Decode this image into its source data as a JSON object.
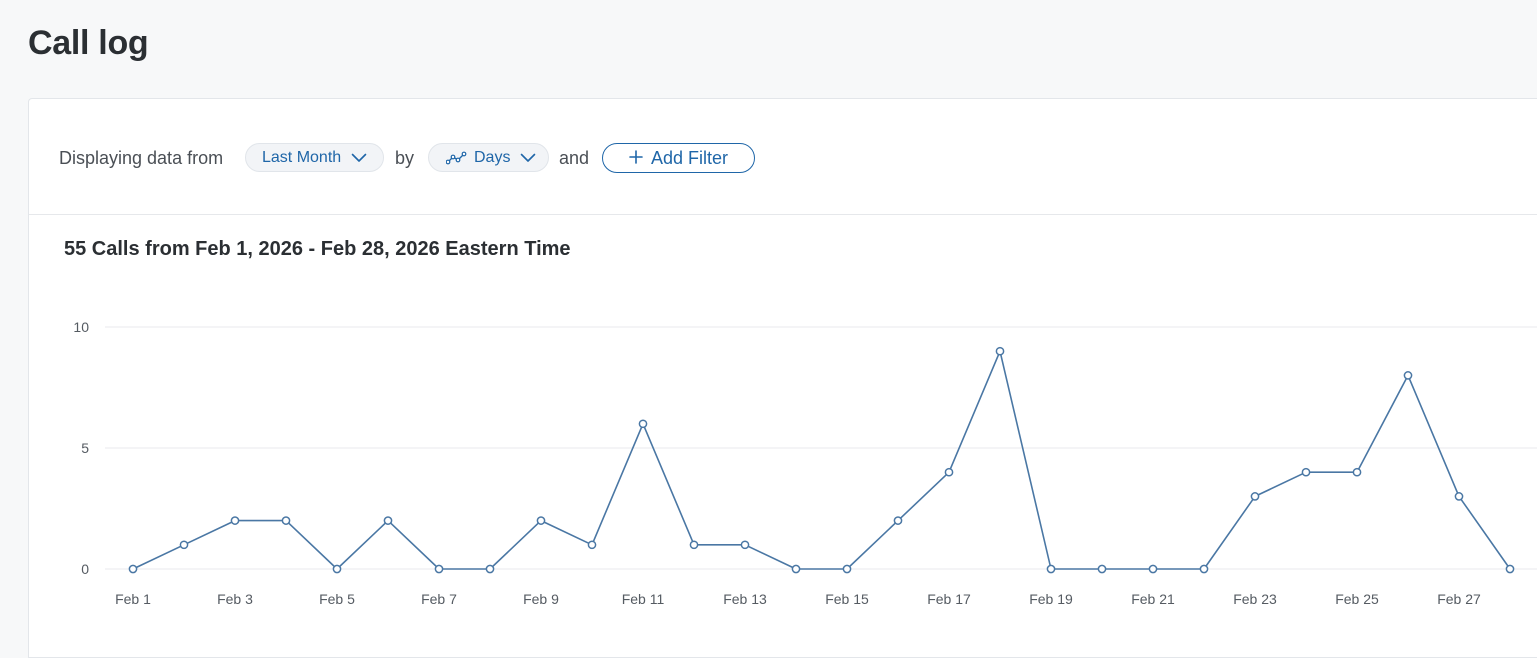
{
  "page": {
    "title": "Call log"
  },
  "filters": {
    "prefix": "Displaying data from",
    "range_label": "Last Month",
    "by": "by",
    "interval_label": "Days",
    "and": "and",
    "add_filter_label": "Add Filter"
  },
  "colors": {
    "accent": "#1f66a8",
    "line": "#4a77a4",
    "grid": "#e8eaed"
  },
  "icons": {
    "range_dropdown": "chevron-down-icon",
    "interval": "line-chart-icon",
    "interval_dropdown": "chevron-down-icon",
    "add": "plus-icon"
  },
  "chart_data": {
    "type": "line",
    "title": "55 Calls from Feb 1, 2026 - Feb 28, 2026 Eastern Time",
    "xlabel": "",
    "ylabel": "",
    "ylim": [
      0,
      10
    ],
    "yticks": [
      0,
      5,
      10
    ],
    "grid": true,
    "x": [
      "Feb 1",
      "Feb 2",
      "Feb 3",
      "Feb 4",
      "Feb 5",
      "Feb 6",
      "Feb 7",
      "Feb 8",
      "Feb 9",
      "Feb 10",
      "Feb 11",
      "Feb 12",
      "Feb 13",
      "Feb 14",
      "Feb 15",
      "Feb 16",
      "Feb 17",
      "Feb 18",
      "Feb 19",
      "Feb 20",
      "Feb 21",
      "Feb 22",
      "Feb 23",
      "Feb 24",
      "Feb 25",
      "Feb 26",
      "Feb 27",
      "Feb 28"
    ],
    "xtick_labels": [
      "Feb 1",
      "Feb 3",
      "Feb 5",
      "Feb 7",
      "Feb 9",
      "Feb 11",
      "Feb 13",
      "Feb 15",
      "Feb 17",
      "Feb 19",
      "Feb 21",
      "Feb 23",
      "Feb 25",
      "Feb 27"
    ],
    "series": [
      {
        "values": [
          0,
          1,
          2,
          2,
          0,
          2,
          0,
          0,
          2,
          1,
          6,
          1,
          1,
          0,
          0,
          2,
          4,
          9,
          0,
          0,
          0,
          0,
          3,
          4,
          4,
          8,
          3,
          0
        ]
      }
    ]
  }
}
